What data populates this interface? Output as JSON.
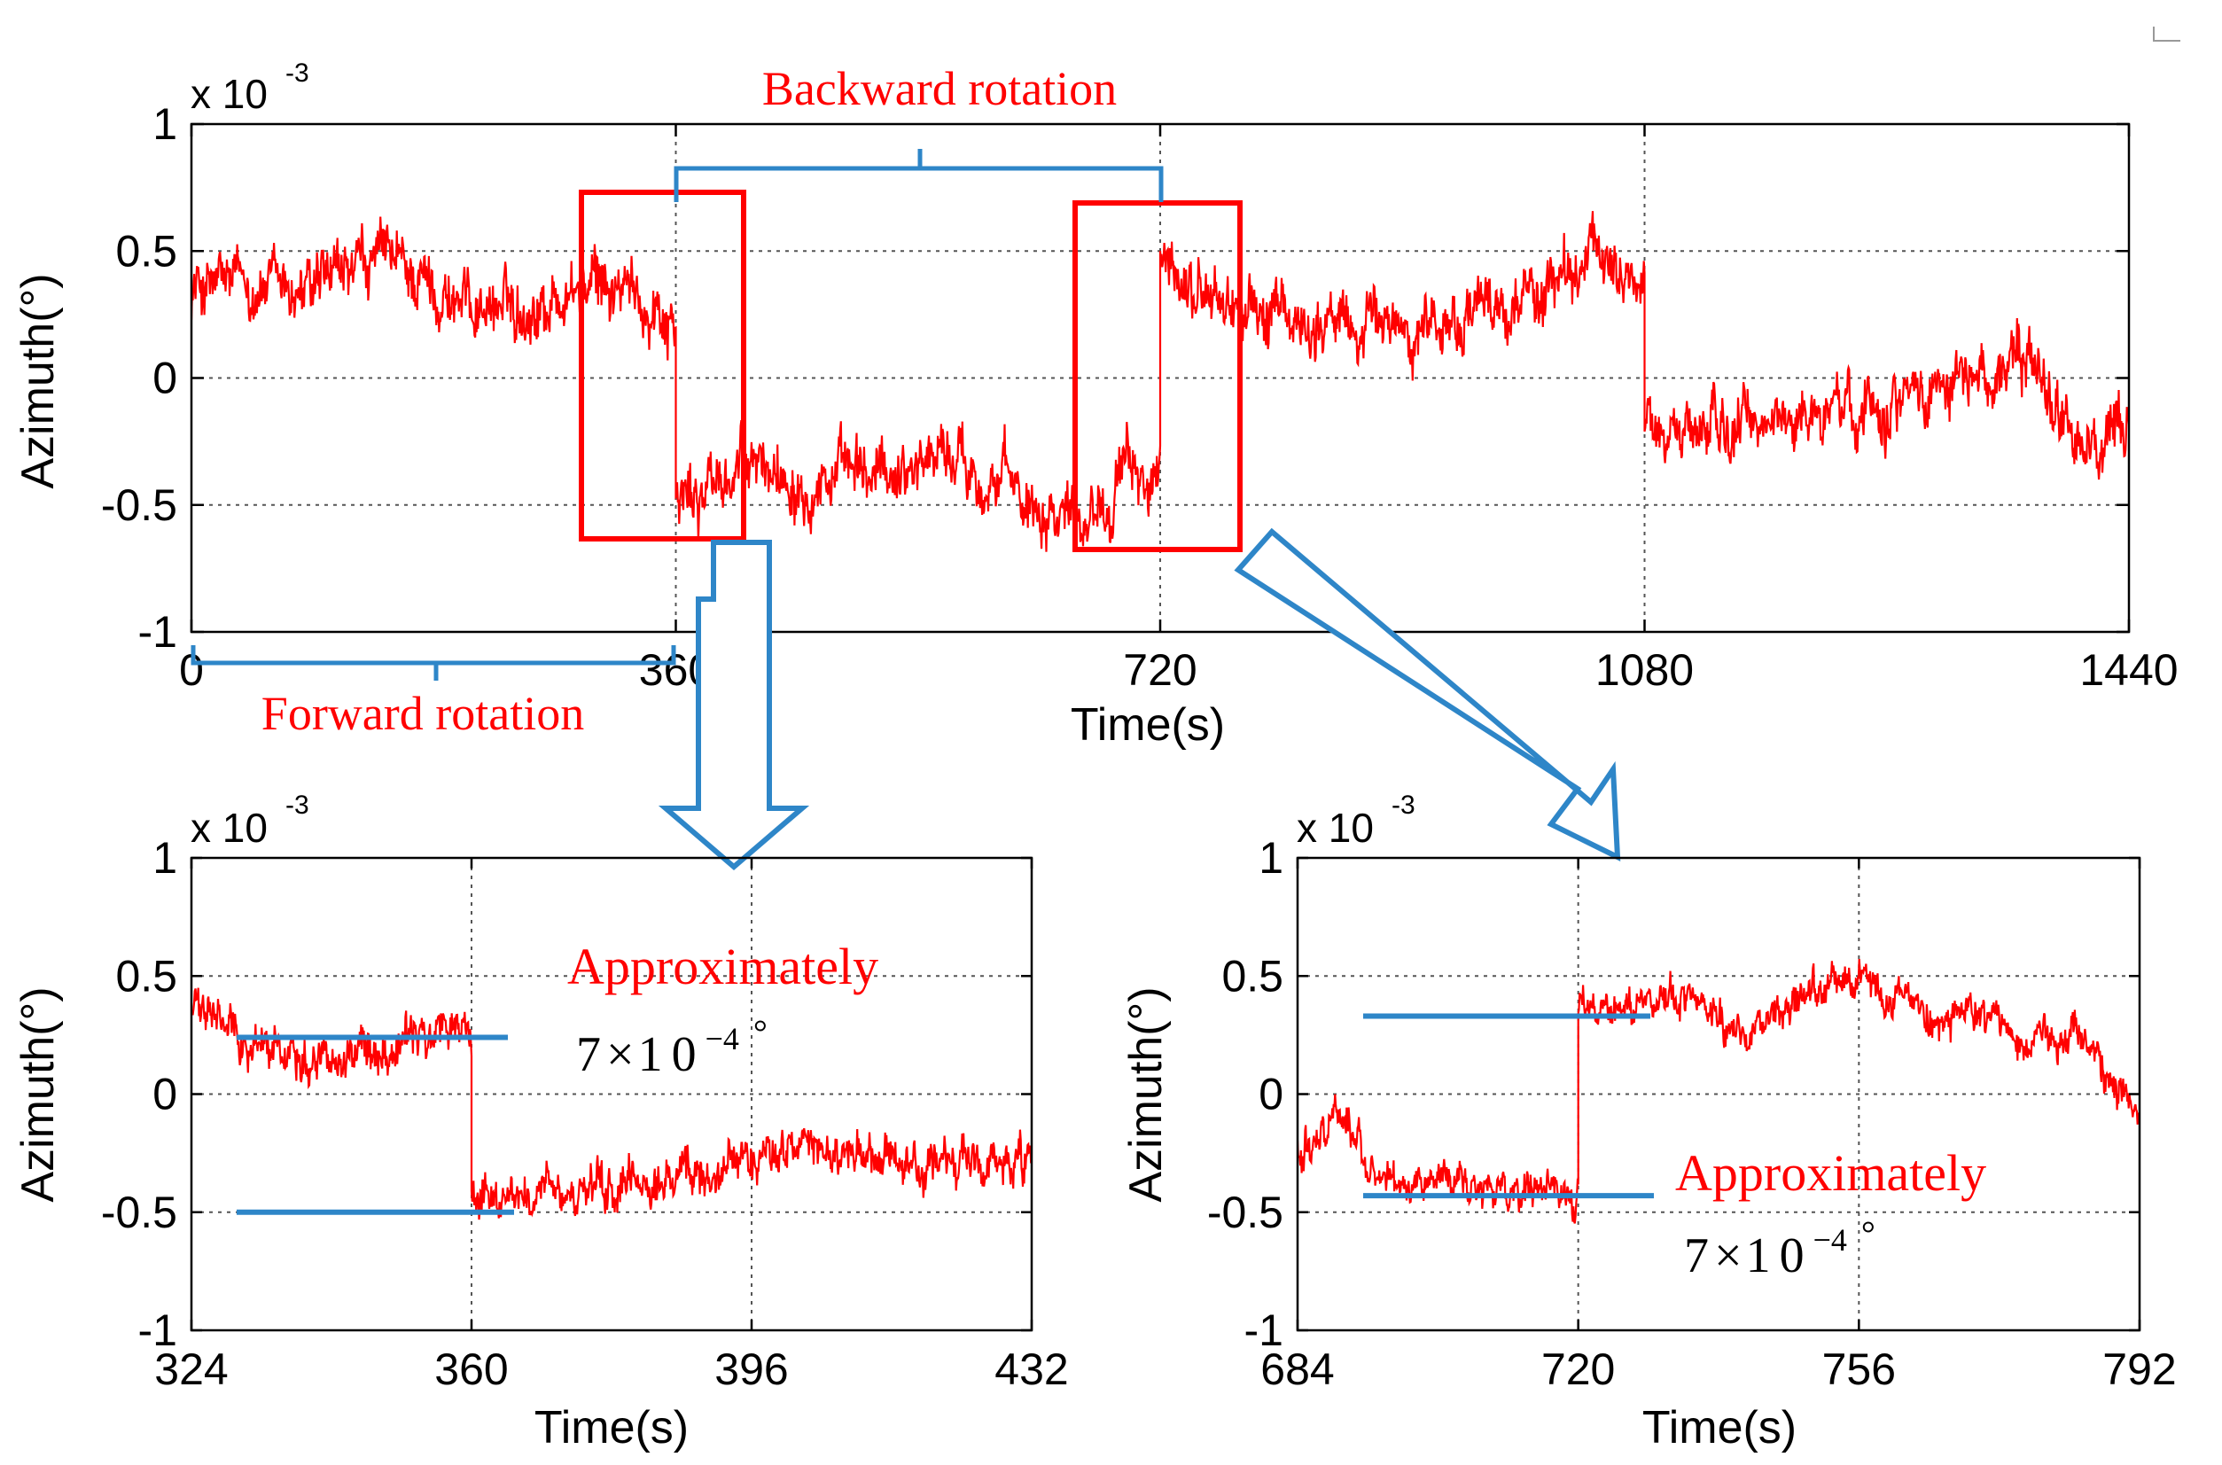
{
  "chart_data": [
    {
      "id": "main",
      "type": "line",
      "title": "",
      "xlabel": "Time(s)",
      "ylabel": "Azimuth(°)",
      "y_multiplier": "x 10",
      "y_exponent": "-3",
      "xlim": [
        0,
        1440
      ],
      "ylim": [
        -1,
        1
      ],
      "xticks": [
        0,
        360,
        720,
        1080,
        1440
      ],
      "yticks": [
        1,
        0.5,
        0,
        -0.5,
        -1
      ],
      "ytick_labels": [
        "1",
        "0.5",
        "0",
        "-0.5",
        "-1"
      ],
      "grid": true,
      "series": [
        {
          "name": "azimuth",
          "color": "#ff0000",
          "segments": [
            {
              "x0": 0,
              "x1": 360,
              "level": 0.25,
              "drift": [
                [
                  0,
                  0.1
                ],
                [
                  0.1,
                  0.12
                ],
                [
                  0.25,
                  0.08
                ],
                [
                  0.4,
                  0.22
                ],
                [
                  0.55,
                  0.05
                ],
                [
                  0.7,
                  0.03
                ],
                [
                  0.85,
                  0.12
                ],
                [
                  1,
                  0.0
                ]
              ]
            },
            {
              "x0": 360,
              "x1": 720,
              "level": -0.4,
              "drift": [
                [
                  0,
                  -0.1
                ],
                [
                  0.15,
                  0.05
                ],
                [
                  0.4,
                  0.0
                ],
                [
                  0.55,
                  0.12
                ],
                [
                  0.7,
                  -0.05
                ],
                [
                  0.85,
                  -0.12
                ],
                [
                  0.95,
                  0.05
                ],
                [
                  1,
                  -0.05
                ]
              ]
            },
            {
              "x0": 720,
              "x1": 1080,
              "level": 0.3,
              "drift": [
                [
                  0,
                  0.1
                ],
                [
                  0.2,
                  -0.05
                ],
                [
                  0.4,
                  -0.1
                ],
                [
                  0.6,
                  -0.08
                ],
                [
                  0.8,
                  0.05
                ],
                [
                  0.92,
                  0.2
                ],
                [
                  1,
                  0.05
                ]
              ]
            },
            {
              "x0": 1080,
              "x1": 1440,
              "level": -0.15,
              "drift": [
                [
                  0,
                  -0.05
                ],
                [
                  0.2,
                  -0.05
                ],
                [
                  0.45,
                  0.05
                ],
                [
                  0.65,
                  0.15
                ],
                [
                  0.8,
                  0.2
                ],
                [
                  0.92,
                  -0.15
                ],
                [
                  1,
                  -0.1
                ]
              ]
            }
          ],
          "noise": 0.09
        }
      ]
    },
    {
      "id": "zoom-left",
      "type": "line",
      "xlabel": "Time(s)",
      "ylabel": "Azimuth(°)",
      "y_multiplier": "x 10",
      "y_exponent": "-3",
      "xlim": [
        324,
        432
      ],
      "ylim": [
        -1,
        1
      ],
      "xticks": [
        324,
        360,
        396,
        432
      ],
      "yticks": [
        1,
        0.5,
        0,
        -0.5,
        -1
      ],
      "ytick_labels": [
        "1",
        "0.5",
        "0",
        "-0.5",
        "-1"
      ],
      "grid": true,
      "series": [
        {
          "name": "azimuth",
          "color": "#ff0000",
          "segments": [
            {
              "x0": 324,
              "x1": 360,
              "level": 0.22,
              "drift": [
                [
                  0,
                  0.15
                ],
                [
                  0.2,
                  0.0
                ],
                [
                  0.45,
                  -0.05
                ],
                [
                  0.7,
                  -0.02
                ],
                [
                  0.9,
                  0.05
                ],
                [
                  1,
                  0.05
                ]
              ]
            },
            {
              "x0": 360,
              "x1": 432,
              "level": -0.32,
              "drift": [
                [
                  0,
                  -0.1
                ],
                [
                  0.2,
                  -0.12
                ],
                [
                  0.4,
                  -0.02
                ],
                [
                  0.55,
                  0.1
                ],
                [
                  0.75,
                  0.0
                ],
                [
                  0.9,
                  0.03
                ],
                [
                  1,
                  0.0
                ]
              ]
            }
          ],
          "noise": 0.07
        }
      ],
      "annotation": {
        "text": "Approximately",
        "value_prefix": "7",
        "value_times": "×",
        "value_base": "10",
        "value_exp": "−4",
        "value_unit": "°",
        "levels": [
          0.24,
          -0.5
        ]
      }
    },
    {
      "id": "zoom-right",
      "type": "line",
      "xlabel": "Time(s)",
      "ylabel": "Azimuth(°)",
      "y_multiplier": "x 10",
      "y_exponent": "-3",
      "xlim": [
        684,
        792
      ],
      "ylim": [
        -1,
        1
      ],
      "xticks": [
        684,
        720,
        756,
        792
      ],
      "yticks": [
        1,
        0.5,
        0,
        -0.5,
        -1
      ],
      "ytick_labels": [
        "1",
        "0.5",
        "0",
        "-0.5",
        "-1"
      ],
      "grid": true,
      "series": [
        {
          "name": "azimuth",
          "color": "#ff0000",
          "segments": [
            {
              "x0": 684,
              "x1": 720,
              "level": -0.3,
              "drift": [
                [
                  0,
                  0.05
                ],
                [
                  0.15,
                  0.25
                ],
                [
                  0.3,
                  -0.1
                ],
                [
                  0.5,
                  -0.05
                ],
                [
                  0.75,
                  -0.12
                ],
                [
                  1,
                  -0.15
                ]
              ]
            },
            {
              "x0": 720,
              "x1": 792,
              "level": 0.33,
              "drift": [
                [
                  0,
                  0.0
                ],
                [
                  0.15,
                  0.1
                ],
                [
                  0.3,
                  -0.05
                ],
                [
                  0.5,
                  0.15
                ],
                [
                  0.65,
                  0.0
                ],
                [
                  0.8,
                  -0.05
                ],
                [
                  0.92,
                  -0.15
                ],
                [
                  1,
                  -0.45
                ]
              ]
            }
          ],
          "noise": 0.06
        }
      ],
      "annotation": {
        "text": "Approximately",
        "value_prefix": "7",
        "value_times": "×",
        "value_base": "10",
        "value_exp": "−4",
        "value_unit": "°",
        "levels": [
          0.33,
          -0.43
        ]
      }
    }
  ],
  "annotations": {
    "backward_rotation": "Backward rotation",
    "forward_rotation": "Forward rotation"
  },
  "colors": {
    "signal": "#ff0000",
    "highlight_box": "#ff0000",
    "bracket": "#2e86c8",
    "arrow": "#2e86c8",
    "level_line": "#2e86c8",
    "grid": "#555555"
  }
}
